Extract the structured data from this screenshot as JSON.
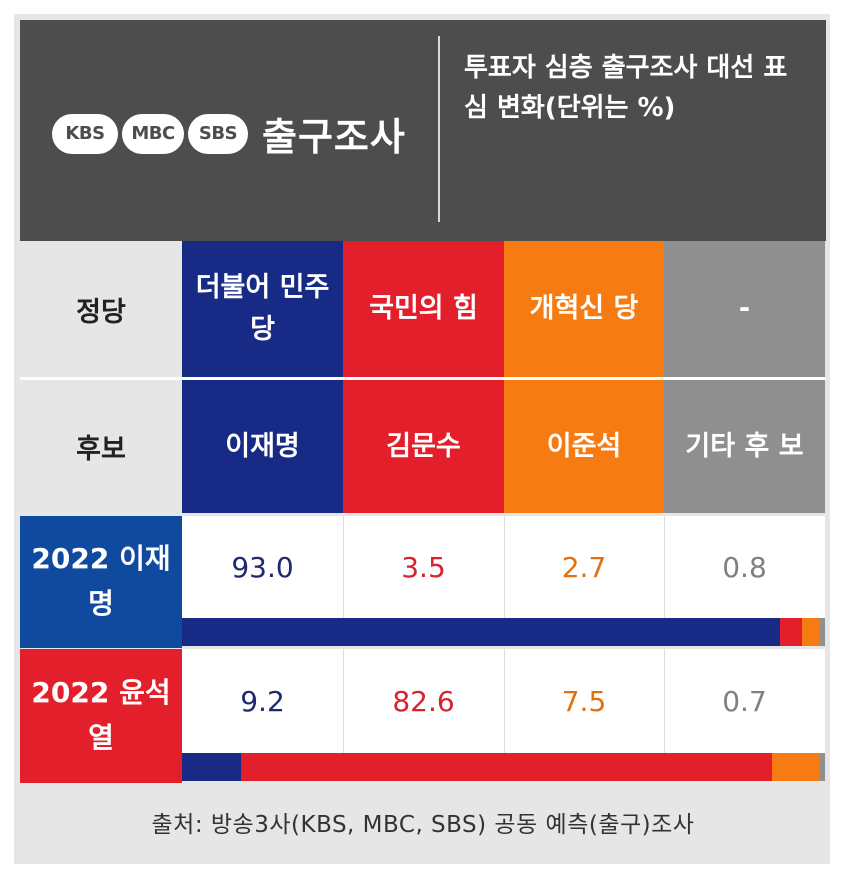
{
  "header": {
    "logos": [
      "KBS",
      "MBC",
      "SBS"
    ],
    "title": "출구조사",
    "subtitle": "투표자 심층 출구조사 대선 표심 변화(단위는 %)"
  },
  "row_labels": {
    "party": "정당",
    "candidate": "후보"
  },
  "columns": [
    {
      "party": "더불어 민주당",
      "candidate": "이재명",
      "color": "#172a86",
      "value_color": "#1f2a6e"
    },
    {
      "party": "국민의 힘",
      "candidate": "김문수",
      "color": "#e31f2c",
      "value_color": "#d8232e"
    },
    {
      "party": "개혁신 당",
      "candidate": "이준석",
      "color": "#f67b12",
      "value_color": "#e3700f"
    },
    {
      "party": "-",
      "candidate": "기타 후 보",
      "color": "#8f8f8f",
      "value_color": "#808080"
    }
  ],
  "chart_data": {
    "type": "table",
    "unit": "%",
    "categories": [
      "이재명",
      "김문수",
      "이준석",
      "기타 후보"
    ],
    "series": [
      {
        "name": "2022 이재명",
        "color": "#0f4a9e",
        "values": [
          93.0,
          3.5,
          2.7,
          0.8
        ]
      },
      {
        "name": "2022 윤석열",
        "color": "#e31f2c",
        "values": [
          9.2,
          82.6,
          7.5,
          0.7
        ]
      }
    ]
  },
  "display_values": [
    [
      "93.0",
      "3.5",
      "2.7",
      "0.8"
    ],
    [
      "9.2",
      "82.6",
      "7.5",
      "0.7"
    ]
  ],
  "footer": "출처: 방송3사(KBS, MBC, SBS) 공동 예측(출구)조사"
}
